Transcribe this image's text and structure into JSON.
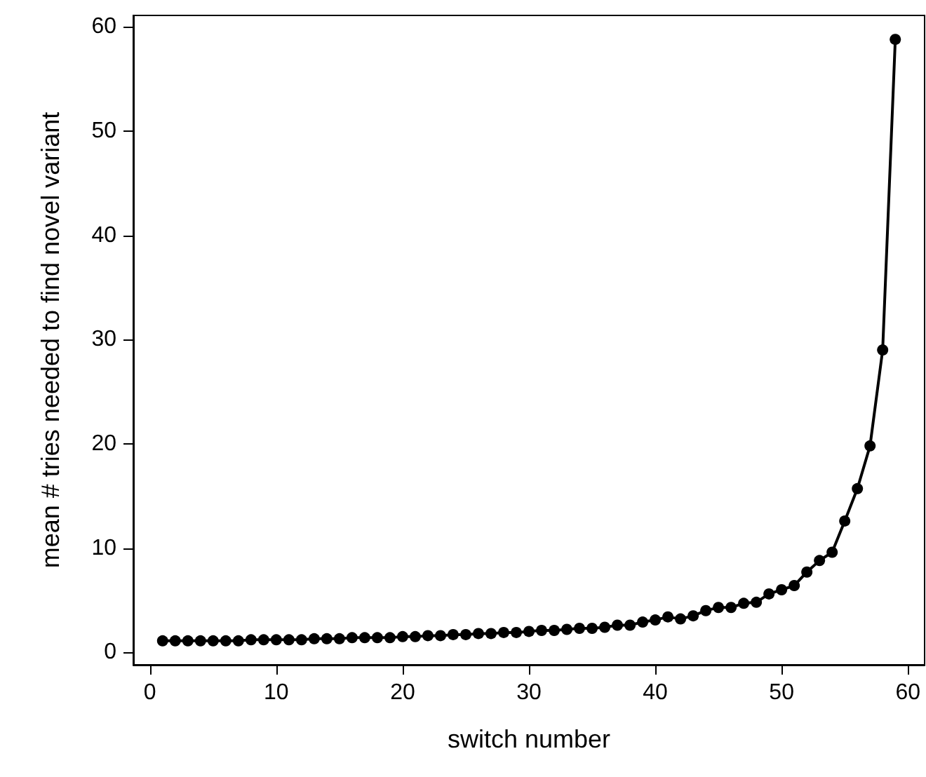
{
  "chart_data": {
    "type": "line",
    "xlabel": "switch number",
    "ylabel": "mean # tries needed to find novel variant",
    "x": [
      1,
      2,
      3,
      4,
      5,
      6,
      7,
      8,
      9,
      10,
      11,
      12,
      13,
      14,
      15,
      16,
      17,
      18,
      19,
      20,
      21,
      22,
      23,
      24,
      25,
      26,
      27,
      28,
      29,
      30,
      31,
      32,
      33,
      34,
      35,
      36,
      37,
      38,
      39,
      40,
      41,
      42,
      43,
      44,
      45,
      46,
      47,
      48,
      49,
      50,
      51,
      52,
      53,
      54,
      55,
      56,
      57,
      58,
      59
    ],
    "series": [
      {
        "color": "#000000",
        "values": [
          1.1,
          1.1,
          1.1,
          1.1,
          1.1,
          1.1,
          1.1,
          1.2,
          1.2,
          1.2,
          1.2,
          1.2,
          1.3,
          1.3,
          1.3,
          1.4,
          1.4,
          1.4,
          1.4,
          1.5,
          1.5,
          1.6,
          1.6,
          1.7,
          1.7,
          1.8,
          1.8,
          1.9,
          1.9,
          2.0,
          2.1,
          2.1,
          2.2,
          2.3,
          2.3,
          2.4,
          2.6,
          2.6,
          2.9,
          3.1,
          3.4,
          3.2,
          3.5,
          4.0,
          4.3,
          4.3,
          4.7,
          4.8,
          5.6,
          6.0,
          6.4,
          7.7,
          8.8,
          9.6,
          12.6,
          15.7,
          19.8,
          29.0,
          58.8
        ]
      }
    ],
    "xlim": [
      -1.32,
      61.32
    ],
    "ylim": [
      -1.2,
      61.1
    ],
    "xticks": [
      0,
      10,
      20,
      30,
      40,
      50,
      60
    ],
    "yticks": [
      0,
      10,
      20,
      30,
      40,
      50,
      60
    ],
    "grid": false,
    "marker": "circle",
    "line_style": "solid"
  }
}
